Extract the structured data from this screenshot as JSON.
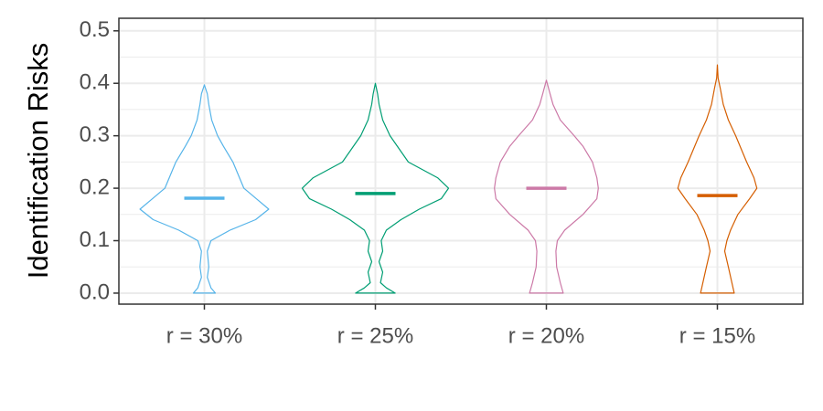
{
  "chart_data": {
    "type": "violin",
    "y_label": "Identification Risks",
    "categories": [
      "r = 30%",
      "r = 25%",
      "r = 20%",
      "r = 15%"
    ],
    "ylim": [
      -0.021,
      0.524
    ],
    "yticks": [
      {
        "value": 0,
        "label": "0.0"
      },
      0.1,
      0.2,
      0.3,
      0.4,
      0.5
    ],
    "minor_yticks": [
      0.05,
      0.15,
      0.25,
      0.35,
      0.45
    ],
    "grid": true,
    "series": [
      {
        "name": "r = 30%",
        "color": "#56B4E9",
        "median": 0.181,
        "density_y": [
          0,
          0.01,
          0.03,
          0.05,
          0.08,
          0.1,
          0.12,
          0.14,
          0.16,
          0.18,
          0.2,
          0.22,
          0.25,
          0.28,
          0.3,
          0.33,
          0.36,
          0.38,
          0.397
        ],
        "density_width": [
          0.15,
          0.09,
          0.04,
          0.06,
          0.04,
          0.09,
          0.35,
          0.7,
          0.88,
          0.71,
          0.54,
          0.48,
          0.39,
          0.26,
          0.18,
          0.1,
          0.06,
          0.04,
          0
        ]
      },
      {
        "name": "r = 25%",
        "color": "#009E73",
        "median": 0.19,
        "density_y": [
          0,
          0.01,
          0.02,
          0.04,
          0.06,
          0.08,
          0.1,
          0.12,
          0.14,
          0.16,
          0.18,
          0.2,
          0.22,
          0.25,
          0.28,
          0.3,
          0.33,
          0.36,
          0.38,
          0.4
        ],
        "density_width": [
          0.27,
          0.15,
          0.07,
          0.1,
          0.05,
          0.1,
          0.08,
          0.15,
          0.35,
          0.6,
          0.9,
          1,
          0.85,
          0.45,
          0.3,
          0.2,
          0.1,
          0.05,
          0.03,
          0
        ]
      },
      {
        "name": "r = 20%",
        "color": "#CC79A7",
        "median": 0.2,
        "density_y": [
          0,
          0.02,
          0.05,
          0.08,
          0.1,
          0.12,
          0.15,
          0.18,
          0.2,
          0.22,
          0.25,
          0.28,
          0.3,
          0.33,
          0.36,
          0.38,
          0.406
        ],
        "density_width": [
          0.23,
          0.19,
          0.14,
          0.13,
          0.15,
          0.25,
          0.5,
          0.69,
          0.71,
          0.69,
          0.63,
          0.5,
          0.38,
          0.19,
          0.09,
          0.05,
          0
        ]
      },
      {
        "name": "r = 15%",
        "color": "#D55E00",
        "median": 0.186,
        "density_y": [
          0,
          0.05,
          0.08,
          0.1,
          0.12,
          0.15,
          0.18,
          0.2,
          0.22,
          0.25,
          0.28,
          0.3,
          0.33,
          0.36,
          0.39,
          0.41,
          0.435
        ],
        "density_width": [
          0.23,
          0.15,
          0.1,
          0.13,
          0.18,
          0.28,
          0.44,
          0.54,
          0.5,
          0.4,
          0.31,
          0.25,
          0.15,
          0.08,
          0.04,
          0.01,
          0
        ]
      }
    ]
  }
}
